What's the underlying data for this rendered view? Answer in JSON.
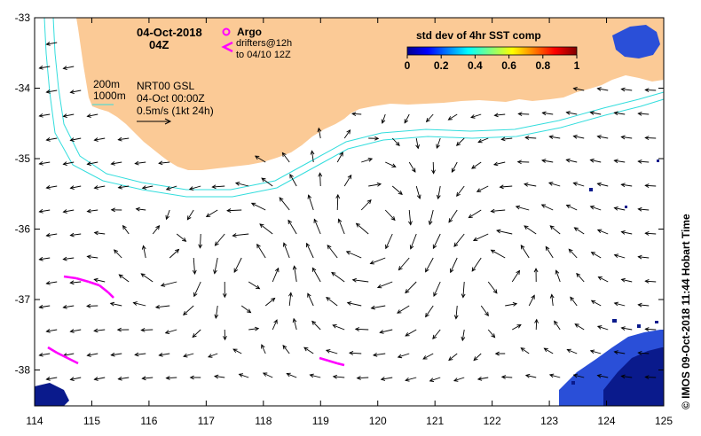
{
  "header": {
    "date": "04-Oct-2018",
    "hour": "04Z"
  },
  "legend": {
    "argo_label": "Argo",
    "drifters_line1": "drifters@12h",
    "drifters_line2": "to 04/10 12Z",
    "argo_color": "#ff00ff",
    "drifter_color": "#ff00ff"
  },
  "colorbar": {
    "title": "std dev of 4hr SST comp",
    "ticks": [
      "0",
      "0.2",
      "0.4",
      "0.6",
      "0.8",
      "1"
    ]
  },
  "isobaths": {
    "label_200": "200m",
    "label_1000": "1000m",
    "color": "#33dddd"
  },
  "current_info": {
    "product": "NRT00 GSL",
    "time": "04-Oct 00:00Z",
    "scale": "0.5m/s (1kt 24h)"
  },
  "axes": {
    "x_ticks": [
      "114",
      "115",
      "116",
      "117",
      "118",
      "119",
      "120",
      "121",
      "122",
      "123",
      "124",
      "125"
    ],
    "y_ticks": [
      "-33",
      "-34",
      "-35",
      "-36",
      "-37",
      "-38"
    ]
  },
  "colors": {
    "land": "#fbca96",
    "sst_dark": "#0a1a8c",
    "sst_mid": "#2a4fd8",
    "sst_light": "#8fc0f0"
  },
  "footer": {
    "stamp": "© IMOS 09-Oct-2018 11:44 Hobart Time"
  }
}
